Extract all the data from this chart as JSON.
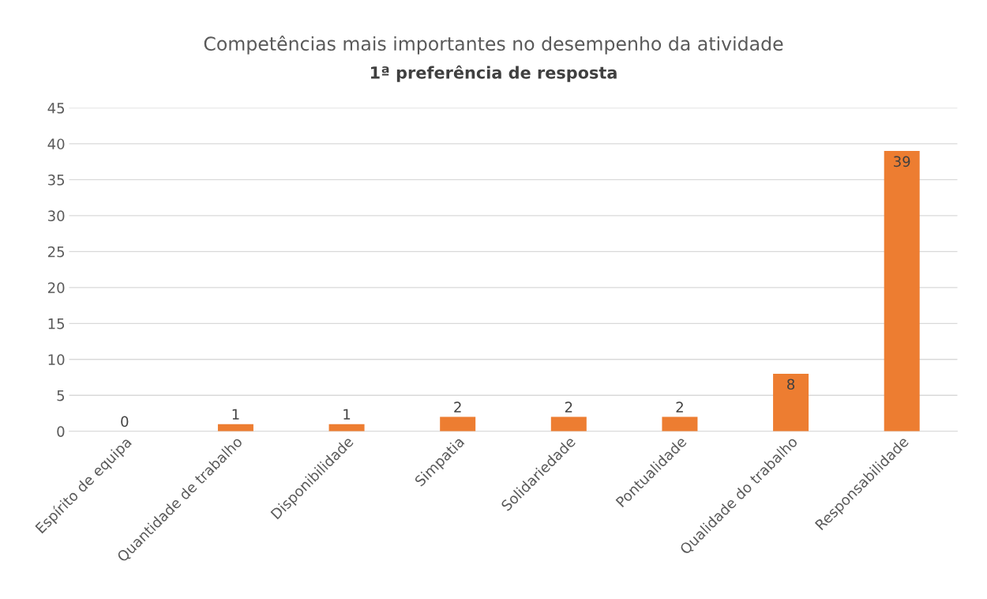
{
  "chart_data": {
    "type": "bar",
    "title": "Competências mais importantes no desempenho da atividade",
    "subtitle": "1ª preferência de resposta",
    "categories": [
      "Espírito de equipa",
      "Quantidade de trabalho",
      "Disponibilidade",
      "Simpatia",
      "Solidariedade",
      "Pontualidade",
      "Qualidade do trabalho",
      "Responsabilidade"
    ],
    "values": [
      0,
      1,
      1,
      2,
      2,
      2,
      8,
      39
    ],
    "color": "#ed7d31",
    "ylim": [
      0,
      45
    ],
    "yticks": [
      0,
      5,
      10,
      15,
      20,
      25,
      30,
      35,
      40,
      45
    ],
    "grid": "y",
    "data_labels": true
  }
}
